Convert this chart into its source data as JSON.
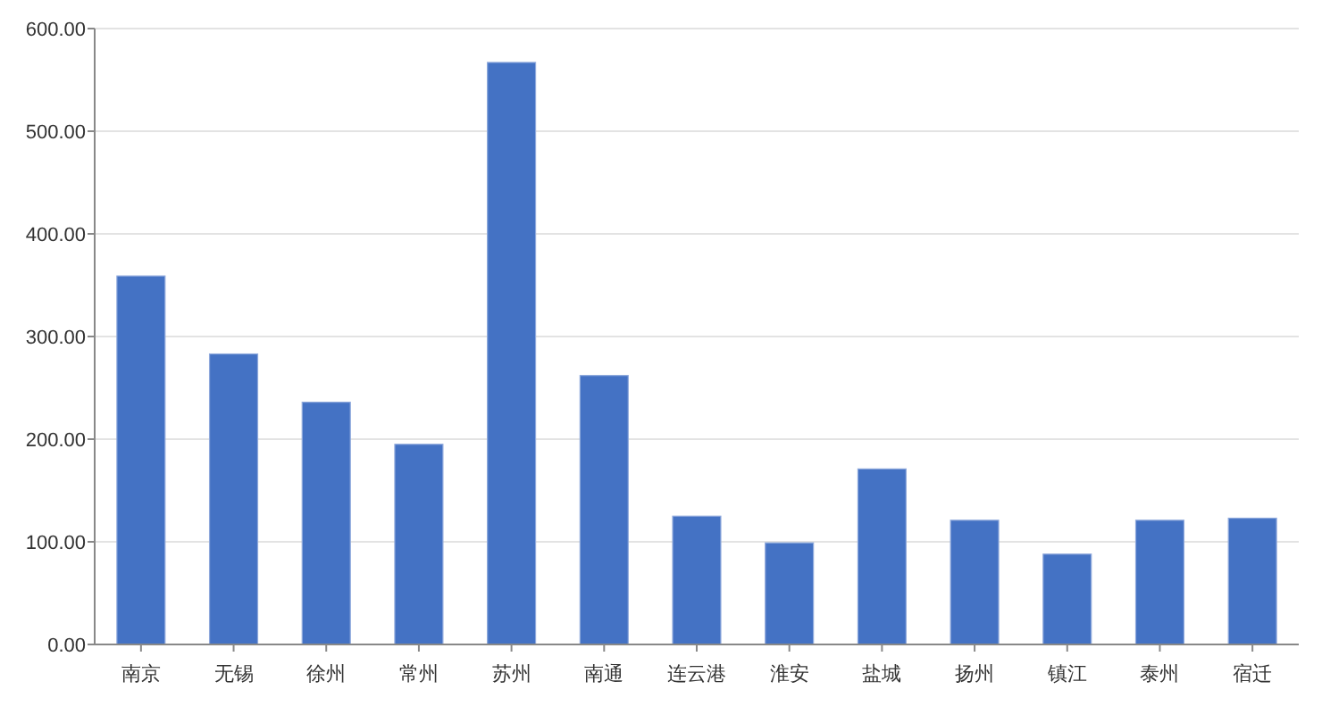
{
  "chart_data": {
    "type": "bar",
    "categories": [
      "南京",
      "无锡",
      "徐州",
      "常州",
      "苏州",
      "南通",
      "连云港",
      "淮安",
      "盐城",
      "扬州",
      "镇江",
      "泰州",
      "宿迁"
    ],
    "values": [
      359,
      283,
      236,
      195,
      567,
      262,
      125,
      99,
      171,
      121,
      88,
      121,
      123
    ],
    "color": "#4472c4",
    "ylim": [
      0,
      600
    ],
    "yticks": [
      {
        "value": 0,
        "label": "0.00"
      },
      {
        "value": 100,
        "label": "100.00"
      },
      {
        "value": 200,
        "label": "200.00"
      },
      {
        "value": 300,
        "label": "300.00"
      },
      {
        "value": 400,
        "label": "400.00"
      },
      {
        "value": 500,
        "label": "500.00"
      },
      {
        "value": 600,
        "label": "600.00"
      }
    ],
    "grid": "y"
  }
}
